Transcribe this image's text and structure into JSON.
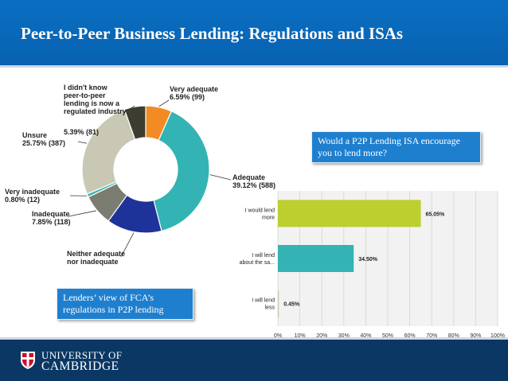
{
  "slide": {
    "title": "Peer-to-Peer Business Lending: Regulations and ISAs"
  },
  "university": {
    "line1": "UNIVERSITY OF",
    "line2": "CAMBRIDGE",
    "crest_icon": "cambridge-crest-icon"
  },
  "callouts": {
    "fca": "Lenders’ view of FCA’s regulations in P2P lending",
    "isa": "Would a P2P Lending ISA encourage you to lend more?"
  },
  "colors": {
    "header": "#0a6fc2",
    "footer": "#0a3763",
    "callout": "#1f7fcf"
  },
  "chart_data": [
    {
      "type": "pie",
      "variant": "donut",
      "slices": [
        {
          "label": [
            "Very adequate",
            "6.59% (99)"
          ],
          "value": 6.59,
          "count": 99,
          "color": "#f28b24"
        },
        {
          "label": [
            "Adequate",
            "39.12% (588)"
          ],
          "value": 39.12,
          "count": 588,
          "color": "#33b3b3"
        },
        {
          "label": [
            "Neither adequate",
            "nor inadequate"
          ],
          "value": 13.91,
          "count": 209,
          "color": "#1e3399"
        },
        {
          "label": [
            "Inadequate",
            "7.85% (118)"
          ],
          "value": 7.85,
          "count": 118,
          "color": "#7a7d6f"
        },
        {
          "label": [
            "Very inadequate",
            "0.80% (12)"
          ],
          "value": 0.8,
          "count": 12,
          "color": "#33b3b3"
        },
        {
          "label": [
            "Unsure",
            "25.75% (387)"
          ],
          "value": 25.75,
          "count": 387,
          "color": "#c8c8b4"
        },
        {
          "label": [
            "I didn't know",
            "peer-to-peer",
            "lending is now a",
            "regulated industry"
          ],
          "value_label": "5.39% (81)",
          "value": 5.39,
          "count": 81,
          "color": "#3d3d30"
        }
      ]
    },
    {
      "type": "bar",
      "orientation": "horizontal",
      "categories": [
        [
          "I would lend",
          "more"
        ],
        [
          "I will lend",
          "about the sa..."
        ],
        [
          "I will lend",
          "less"
        ]
      ],
      "values": [
        65.05,
        34.5,
        0.45
      ],
      "value_labels": [
        "65.05%",
        "34.50%",
        "0.45%"
      ],
      "colors": [
        "#bccf2f",
        "#33b3b3",
        "#c8c8b4"
      ],
      "xlim": [
        0,
        100
      ],
      "x_ticks": [
        "0%",
        "10%",
        "20%",
        "30%",
        "40%",
        "50%",
        "60%",
        "70%",
        "80%",
        "90%",
        "100%"
      ],
      "grid": true
    }
  ]
}
